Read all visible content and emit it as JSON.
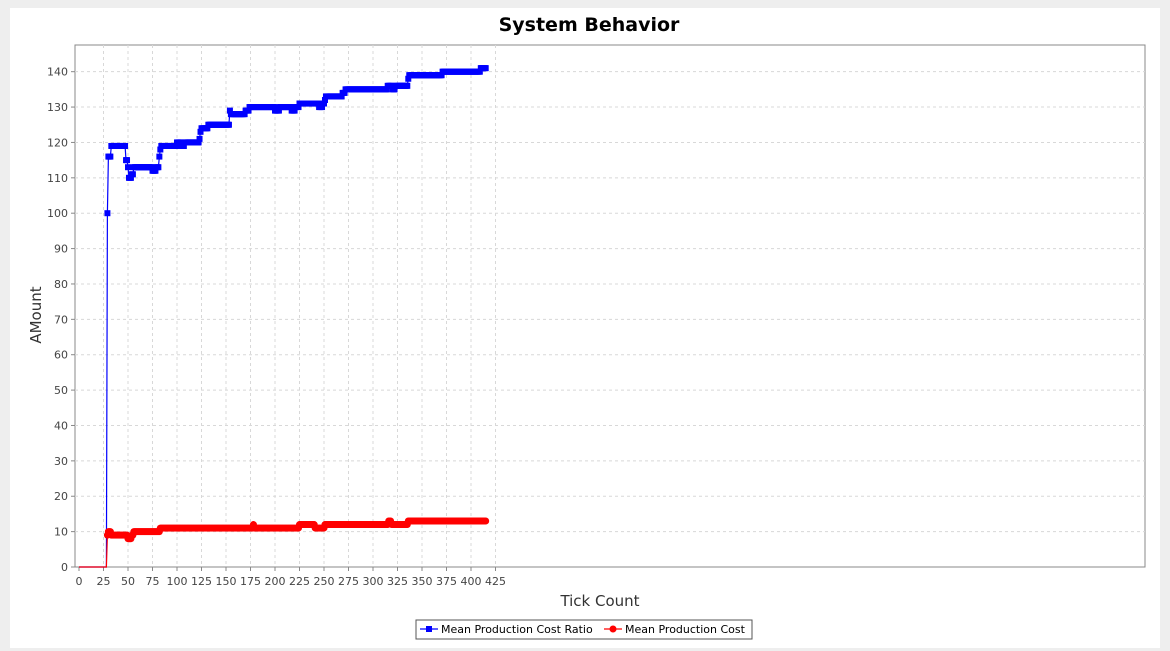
{
  "chart_data": {
    "type": "line",
    "title": "System Behavior",
    "xlabel": "Tick Count",
    "ylabel": "AMount",
    "xlim": [
      0,
      435
    ],
    "ylim": [
      0,
      148
    ],
    "xticks": [
      0,
      25,
      50,
      75,
      100,
      125,
      150,
      175,
      200,
      225,
      250,
      275,
      300,
      325,
      350,
      375,
      400,
      425
    ],
    "yticks": [
      0,
      10,
      20,
      30,
      40,
      50,
      60,
      70,
      80,
      90,
      100,
      110,
      120,
      130,
      140
    ],
    "grid": true,
    "legend_position": "bottom-center",
    "series": [
      {
        "name": "Mean Production Cost Ratio",
        "color": "#0000ff",
        "marker": "square",
        "points": [
          [
            0,
            0
          ],
          [
            28,
            0
          ],
          [
            29,
            100
          ],
          [
            30,
            116
          ],
          [
            31,
            116
          ],
          [
            32,
            116
          ],
          [
            33,
            119
          ],
          [
            35,
            119
          ],
          [
            40,
            119
          ],
          [
            45,
            119
          ],
          [
            47,
            119
          ],
          [
            48,
            115
          ],
          [
            49,
            115
          ],
          [
            50,
            113
          ],
          [
            51,
            110
          ],
          [
            53,
            110
          ],
          [
            54,
            111
          ],
          [
            55,
            111
          ],
          [
            56,
            113
          ],
          [
            60,
            113
          ],
          [
            65,
            113
          ],
          [
            70,
            113
          ],
          [
            74,
            113
          ],
          [
            75,
            112
          ],
          [
            78,
            112
          ],
          [
            79,
            113
          ],
          [
            81,
            113
          ],
          [
            82,
            116
          ],
          [
            83,
            118
          ],
          [
            84,
            119
          ],
          [
            90,
            119
          ],
          [
            95,
            119
          ],
          [
            99,
            119
          ],
          [
            100,
            120
          ],
          [
            104,
            120
          ],
          [
            105,
            119
          ],
          [
            107,
            119
          ],
          [
            108,
            120
          ],
          [
            115,
            120
          ],
          [
            122,
            120
          ],
          [
            123,
            121
          ],
          [
            124,
            123
          ],
          [
            125,
            124
          ],
          [
            130,
            124
          ],
          [
            132,
            125
          ],
          [
            140,
            125
          ],
          [
            148,
            125
          ],
          [
            153,
            125
          ],
          [
            154,
            129
          ],
          [
            155,
            128
          ],
          [
            160,
            128
          ],
          [
            165,
            128
          ],
          [
            169,
            128
          ],
          [
            170,
            129
          ],
          [
            173,
            129
          ],
          [
            174,
            130
          ],
          [
            180,
            130
          ],
          [
            190,
            130
          ],
          [
            199,
            130
          ],
          [
            200,
            129
          ],
          [
            204,
            129
          ],
          [
            205,
            130
          ],
          [
            210,
            130
          ],
          [
            216,
            130
          ],
          [
            217,
            129
          ],
          [
            220,
            129
          ],
          [
            221,
            130
          ],
          [
            224,
            130
          ],
          [
            225,
            131
          ],
          [
            230,
            131
          ],
          [
            235,
            131
          ],
          [
            244,
            131
          ],
          [
            245,
            130
          ],
          [
            248,
            130
          ],
          [
            249,
            131
          ],
          [
            251,
            132
          ],
          [
            252,
            133
          ],
          [
            258,
            133
          ],
          [
            264,
            133
          ],
          [
            268,
            133
          ],
          [
            269,
            134
          ],
          [
            271,
            134
          ],
          [
            272,
            135
          ],
          [
            280,
            135
          ],
          [
            290,
            135
          ],
          [
            300,
            135
          ],
          [
            310,
            135
          ],
          [
            314,
            135
          ],
          [
            315,
            136
          ],
          [
            319,
            136
          ],
          [
            320,
            135
          ],
          [
            322,
            135
          ],
          [
            323,
            136
          ],
          [
            330,
            136
          ],
          [
            335,
            136
          ],
          [
            336,
            138
          ],
          [
            337,
            139
          ],
          [
            345,
            139
          ],
          [
            355,
            139
          ],
          [
            365,
            139
          ],
          [
            370,
            139
          ],
          [
            371,
            140
          ],
          [
            380,
            140
          ],
          [
            390,
            140
          ],
          [
            400,
            140
          ],
          [
            409,
            140
          ],
          [
            410,
            141
          ],
          [
            415,
            141
          ]
        ]
      },
      {
        "name": "Mean Production Cost",
        "color": "#ff0000",
        "marker": "circle",
        "points": [
          [
            0,
            0
          ],
          [
            28,
            0
          ],
          [
            29,
            9
          ],
          [
            30,
            10
          ],
          [
            31,
            10
          ],
          [
            32,
            10
          ],
          [
            33,
            9
          ],
          [
            40,
            9
          ],
          [
            48,
            9
          ],
          [
            49,
            9
          ],
          [
            50,
            8
          ],
          [
            53,
            8
          ],
          [
            54,
            9
          ],
          [
            55,
            9
          ],
          [
            56,
            10
          ],
          [
            65,
            10
          ],
          [
            75,
            10
          ],
          [
            82,
            10
          ],
          [
            83,
            11
          ],
          [
            100,
            11
          ],
          [
            120,
            11
          ],
          [
            150,
            11
          ],
          [
            170,
            11
          ],
          [
            177,
            11
          ],
          [
            178,
            12
          ],
          [
            179,
            11
          ],
          [
            190,
            11
          ],
          [
            210,
            11
          ],
          [
            224,
            11
          ],
          [
            225,
            12
          ],
          [
            235,
            12
          ],
          [
            240,
            12
          ],
          [
            241,
            11
          ],
          [
            245,
            11
          ],
          [
            250,
            11
          ],
          [
            251,
            12
          ],
          [
            270,
            12
          ],
          [
            290,
            12
          ],
          [
            310,
            12
          ],
          [
            315,
            12
          ],
          [
            316,
            13
          ],
          [
            318,
            13
          ],
          [
            319,
            12
          ],
          [
            325,
            12
          ],
          [
            335,
            12
          ],
          [
            336,
            13
          ],
          [
            350,
            13
          ],
          [
            370,
            13
          ],
          [
            390,
            13
          ],
          [
            410,
            13
          ],
          [
            415,
            13
          ]
        ]
      }
    ]
  }
}
